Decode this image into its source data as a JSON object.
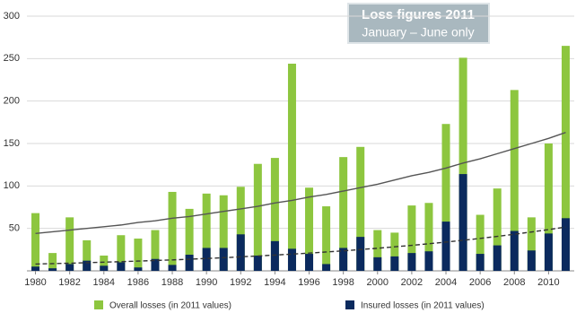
{
  "chart_data": {
    "type": "bar",
    "annotation": {
      "title": "Loss figures 2011",
      "subtitle": "January – June only"
    },
    "x": [
      1980,
      1981,
      1982,
      1983,
      1984,
      1985,
      1986,
      1987,
      1988,
      1989,
      1990,
      1991,
      1992,
      1993,
      1994,
      1995,
      1996,
      1997,
      1998,
      1999,
      2000,
      2001,
      2002,
      2003,
      2004,
      2005,
      2006,
      2007,
      2008,
      2009,
      2010,
      2011
    ],
    "xlim": [
      1979.5,
      2011.5
    ],
    "xticks": [
      1980,
      1982,
      1984,
      1986,
      1988,
      1990,
      1992,
      1994,
      1996,
      1998,
      2000,
      2002,
      2004,
      2006,
      2008,
      2010
    ],
    "ylim": [
      0,
      300
    ],
    "yticks": [
      50,
      100,
      150,
      200,
      250,
      300
    ],
    "grid": true,
    "legend": "bottom",
    "series": [
      {
        "name": "Overall losses (in 2011 values)",
        "color": "#8dc63f",
        "values": [
          68,
          21,
          63,
          36,
          18,
          42,
          38,
          48,
          93,
          73,
          91,
          89,
          99,
          126,
          133,
          244,
          98,
          76,
          134,
          146,
          48,
          45,
          77,
          80,
          173,
          251,
          66,
          97,
          213,
          63,
          150,
          265
        ]
      },
      {
        "name": "Insured losses (in 2011 values)",
        "color": "#0b2a5e",
        "values": [
          5,
          3,
          8,
          12,
          6,
          10,
          4,
          14,
          7,
          19,
          27,
          27,
          43,
          18,
          35,
          26,
          20,
          8,
          27,
          40,
          16,
          17,
          21,
          23,
          58,
          114,
          20,
          30,
          47,
          24,
          44,
          62
        ]
      }
    ],
    "trend_lines": [
      {
        "color": "#555555",
        "dashed": false,
        "values": [
          44,
          46,
          48,
          50,
          52,
          54,
          57,
          59,
          62,
          64,
          67,
          70,
          73,
          76,
          80,
          83,
          87,
          90,
          94,
          98,
          102,
          107,
          112,
          116,
          121,
          127,
          132,
          138,
          144,
          150,
          156,
          163
        ]
      },
      {
        "color": "#333333",
        "dashed": true,
        "values": [
          8,
          8.5,
          9,
          9.6,
          10.2,
          10.8,
          11.5,
          12.2,
          12.9,
          13.7,
          14.6,
          15.5,
          16.5,
          17.5,
          18.6,
          19.7,
          20.9,
          22.2,
          23.6,
          25.1,
          26.6,
          28.3,
          30,
          31.9,
          33.9,
          36,
          38.2,
          40.6,
          43.1,
          45.8,
          48.6,
          51.6
        ]
      }
    ]
  }
}
